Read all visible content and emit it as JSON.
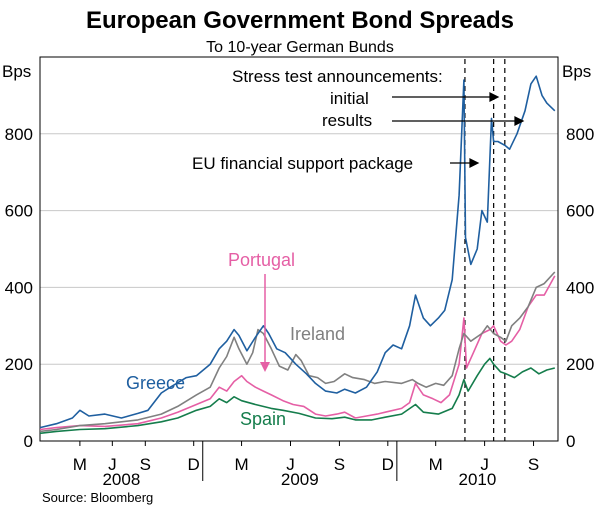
{
  "chart_data": {
    "type": "line",
    "title": "European Government Bond Spreads",
    "subtitle": "To 10-year German Bunds",
    "ylabel_left": "Bps",
    "ylabel_right": "Bps",
    "ylim": [
      0,
      1000
    ],
    "yticks": [
      0,
      200,
      400,
      600,
      800
    ],
    "xlim": [
      "2008-03-01",
      "2010-10-31"
    ],
    "month_ticks": [
      {
        "label": "M",
        "date": "2008-05-15"
      },
      {
        "label": "J",
        "date": "2008-07-15"
      },
      {
        "label": "S",
        "date": "2008-09-15"
      },
      {
        "label": "D",
        "date": "2008-12-15"
      },
      {
        "label": "M",
        "date": "2009-03-15"
      },
      {
        "label": "J",
        "date": "2009-06-15"
      },
      {
        "label": "S",
        "date": "2009-09-15"
      },
      {
        "label": "D",
        "date": "2009-12-15"
      },
      {
        "label": "M",
        "date": "2010-03-15"
      },
      {
        "label": "J",
        "date": "2010-06-15"
      },
      {
        "label": "S",
        "date": "2010-09-15"
      }
    ],
    "years": [
      {
        "label": "2008",
        "start": "2008-03-01",
        "end": "2009-01-01"
      },
      {
        "label": "2009",
        "start": "2009-01-01",
        "end": "2010-01-01"
      },
      {
        "label": "2010",
        "start": "2010-01-01",
        "end": "2010-10-31"
      }
    ],
    "vlines": [
      "2010-05-09",
      "2010-07-02",
      "2010-07-23"
    ],
    "annotations": {
      "stress_test": "Stress test announcements:",
      "initial": "initial",
      "results": "results",
      "eu_package": "EU financial support package"
    },
    "series": [
      {
        "name": "Greece",
        "color": "#1f5fa0",
        "points": [
          [
            "2008-03-01",
            35
          ],
          [
            "2008-04-01",
            45
          ],
          [
            "2008-05-01",
            60
          ],
          [
            "2008-05-15",
            80
          ],
          [
            "2008-06-01",
            65
          ],
          [
            "2008-07-01",
            70
          ],
          [
            "2008-08-01",
            60
          ],
          [
            "2008-09-01",
            72
          ],
          [
            "2008-09-20",
            80
          ],
          [
            "2008-10-15",
            125
          ],
          [
            "2008-11-01",
            140
          ],
          [
            "2008-12-01",
            165
          ],
          [
            "2008-12-20",
            170
          ],
          [
            "2009-01-15",
            200
          ],
          [
            "2009-02-01",
            240
          ],
          [
            "2009-02-15",
            260
          ],
          [
            "2009-03-01",
            290
          ],
          [
            "2009-03-10",
            275
          ],
          [
            "2009-03-25",
            235
          ],
          [
            "2009-04-10",
            270
          ],
          [
            "2009-04-25",
            300
          ],
          [
            "2009-05-05",
            280
          ],
          [
            "2009-05-20",
            240
          ],
          [
            "2009-06-05",
            230
          ],
          [
            "2009-06-25",
            200
          ],
          [
            "2009-07-15",
            175
          ],
          [
            "2009-08-01",
            150
          ],
          [
            "2009-08-20",
            130
          ],
          [
            "2009-09-10",
            125
          ],
          [
            "2009-09-25",
            135
          ],
          [
            "2009-10-15",
            125
          ],
          [
            "2009-11-05",
            140
          ],
          [
            "2009-11-25",
            180
          ],
          [
            "2009-12-10",
            230
          ],
          [
            "2009-12-25",
            250
          ],
          [
            "2010-01-10",
            240
          ],
          [
            "2010-01-25",
            300
          ],
          [
            "2010-02-05",
            380
          ],
          [
            "2010-02-20",
            320
          ],
          [
            "2010-03-05",
            300
          ],
          [
            "2010-03-20",
            320
          ],
          [
            "2010-04-01",
            340
          ],
          [
            "2010-04-15",
            420
          ],
          [
            "2010-04-28",
            640
          ],
          [
            "2010-05-07",
            940
          ],
          [
            "2010-05-10",
            530
          ],
          [
            "2010-05-20",
            460
          ],
          [
            "2010-06-01",
            500
          ],
          [
            "2010-06-10",
            600
          ],
          [
            "2010-06-20",
            570
          ],
          [
            "2010-06-28",
            840
          ],
          [
            "2010-07-02",
            780
          ],
          [
            "2010-07-10",
            780
          ],
          [
            "2010-07-23",
            770
          ],
          [
            "2010-08-01",
            760
          ],
          [
            "2010-08-15",
            800
          ],
          [
            "2010-08-30",
            860
          ],
          [
            "2010-09-10",
            930
          ],
          [
            "2010-09-20",
            950
          ],
          [
            "2010-10-01",
            900
          ],
          [
            "2010-10-10",
            880
          ],
          [
            "2010-10-25",
            860
          ]
        ]
      },
      {
        "name": "Ireland",
        "color": "#808080",
        "points": [
          [
            "2008-03-01",
            25
          ],
          [
            "2008-04-01",
            30
          ],
          [
            "2008-05-15",
            40
          ],
          [
            "2008-07-01",
            45
          ],
          [
            "2008-09-01",
            55
          ],
          [
            "2008-10-15",
            70
          ],
          [
            "2008-11-15",
            90
          ],
          [
            "2008-12-20",
            120
          ],
          [
            "2009-01-15",
            140
          ],
          [
            "2009-02-01",
            190
          ],
          [
            "2009-02-15",
            220
          ],
          [
            "2009-03-01",
            270
          ],
          [
            "2009-03-10",
            240
          ],
          [
            "2009-03-25",
            200
          ],
          [
            "2009-04-05",
            230
          ],
          [
            "2009-04-15",
            290
          ],
          [
            "2009-04-25",
            280
          ],
          [
            "2009-05-10",
            240
          ],
          [
            "2009-05-25",
            195
          ],
          [
            "2009-06-10",
            185
          ],
          [
            "2009-06-25",
            225
          ],
          [
            "2009-07-05",
            210
          ],
          [
            "2009-07-20",
            170
          ],
          [
            "2009-08-05",
            165
          ],
          [
            "2009-08-20",
            150
          ],
          [
            "2009-09-05",
            155
          ],
          [
            "2009-09-25",
            175
          ],
          [
            "2009-10-10",
            165
          ],
          [
            "2009-11-01",
            160
          ],
          [
            "2009-11-20",
            150
          ],
          [
            "2009-12-10",
            155
          ],
          [
            "2010-01-10",
            150
          ],
          [
            "2010-01-30",
            160
          ],
          [
            "2010-02-10",
            150
          ],
          [
            "2010-02-25",
            140
          ],
          [
            "2010-03-15",
            150
          ],
          [
            "2010-03-30",
            145
          ],
          [
            "2010-04-15",
            170
          ],
          [
            "2010-04-28",
            240
          ],
          [
            "2010-05-07",
            280
          ],
          [
            "2010-05-20",
            260
          ],
          [
            "2010-06-10",
            280
          ],
          [
            "2010-06-20",
            300
          ],
          [
            "2010-07-02",
            280
          ],
          [
            "2010-07-15",
            270
          ],
          [
            "2010-07-25",
            260
          ],
          [
            "2010-08-05",
            300
          ],
          [
            "2010-08-20",
            320
          ],
          [
            "2010-09-05",
            350
          ],
          [
            "2010-09-20",
            400
          ],
          [
            "2010-10-05",
            410
          ],
          [
            "2010-10-25",
            440
          ]
        ]
      },
      {
        "name": "Portugal",
        "color": "#e55fa5",
        "points": [
          [
            "2008-03-01",
            30
          ],
          [
            "2008-04-01",
            35
          ],
          [
            "2008-05-15",
            40
          ],
          [
            "2008-07-01",
            38
          ],
          [
            "2008-09-01",
            45
          ],
          [
            "2008-10-15",
            60
          ],
          [
            "2008-11-15",
            75
          ],
          [
            "2008-12-20",
            95
          ],
          [
            "2009-01-15",
            110
          ],
          [
            "2009-02-01",
            140
          ],
          [
            "2009-02-15",
            130
          ],
          [
            "2009-03-01",
            155
          ],
          [
            "2009-03-15",
            170
          ],
          [
            "2009-03-25",
            155
          ],
          [
            "2009-04-10",
            140
          ],
          [
            "2009-04-25",
            130
          ],
          [
            "2009-05-10",
            120
          ],
          [
            "2009-06-01",
            105
          ],
          [
            "2009-06-20",
            95
          ],
          [
            "2009-07-10",
            90
          ],
          [
            "2009-08-01",
            70
          ],
          [
            "2009-08-20",
            65
          ],
          [
            "2009-09-10",
            70
          ],
          [
            "2009-09-25",
            75
          ],
          [
            "2009-10-15",
            60
          ],
          [
            "2009-11-05",
            65
          ],
          [
            "2009-11-25",
            70
          ],
          [
            "2009-12-10",
            75
          ],
          [
            "2010-01-10",
            85
          ],
          [
            "2010-01-25",
            100
          ],
          [
            "2010-02-05",
            150
          ],
          [
            "2010-02-20",
            120
          ],
          [
            "2010-03-10",
            110
          ],
          [
            "2010-03-25",
            100
          ],
          [
            "2010-04-10",
            120
          ],
          [
            "2010-04-28",
            200
          ],
          [
            "2010-05-07",
            320
          ],
          [
            "2010-05-12",
            190
          ],
          [
            "2010-05-25",
            230
          ],
          [
            "2010-06-10",
            280
          ],
          [
            "2010-06-25",
            290
          ],
          [
            "2010-07-02",
            300
          ],
          [
            "2010-07-15",
            260
          ],
          [
            "2010-07-25",
            250
          ],
          [
            "2010-08-05",
            260
          ],
          [
            "2010-08-20",
            290
          ],
          [
            "2010-09-05",
            350
          ],
          [
            "2010-09-20",
            380
          ],
          [
            "2010-10-05",
            380
          ],
          [
            "2010-10-25",
            430
          ]
        ]
      },
      {
        "name": "Spain",
        "color": "#157d4c",
        "points": [
          [
            "2008-03-01",
            20
          ],
          [
            "2008-04-01",
            25
          ],
          [
            "2008-05-15",
            30
          ],
          [
            "2008-07-01",
            32
          ],
          [
            "2008-09-01",
            40
          ],
          [
            "2008-10-15",
            50
          ],
          [
            "2008-11-15",
            60
          ],
          [
            "2008-12-20",
            80
          ],
          [
            "2009-01-15",
            90
          ],
          [
            "2009-02-01",
            110
          ],
          [
            "2009-02-15",
            100
          ],
          [
            "2009-03-01",
            115
          ],
          [
            "2009-03-15",
            105
          ],
          [
            "2009-04-10",
            95
          ],
          [
            "2009-05-10",
            85
          ],
          [
            "2009-06-01",
            80
          ],
          [
            "2009-07-01",
            72
          ],
          [
            "2009-08-01",
            60
          ],
          [
            "2009-09-01",
            58
          ],
          [
            "2009-09-25",
            62
          ],
          [
            "2009-10-15",
            55
          ],
          [
            "2009-11-15",
            55
          ],
          [
            "2009-12-10",
            62
          ],
          [
            "2010-01-10",
            70
          ],
          [
            "2010-02-05",
            95
          ],
          [
            "2010-02-20",
            75
          ],
          [
            "2010-03-20",
            70
          ],
          [
            "2010-04-15",
            85
          ],
          [
            "2010-04-28",
            120
          ],
          [
            "2010-05-07",
            160
          ],
          [
            "2010-05-15",
            130
          ],
          [
            "2010-06-01",
            170
          ],
          [
            "2010-06-15",
            200
          ],
          [
            "2010-06-25",
            215
          ],
          [
            "2010-07-02",
            200
          ],
          [
            "2010-07-15",
            180
          ],
          [
            "2010-07-25",
            175
          ],
          [
            "2010-08-10",
            165
          ],
          [
            "2010-08-25",
            180
          ],
          [
            "2010-09-10",
            190
          ],
          [
            "2010-09-25",
            175
          ],
          [
            "2010-10-10",
            185
          ],
          [
            "2010-10-25",
            190
          ]
        ]
      }
    ],
    "source": "Source: Bloomberg"
  }
}
